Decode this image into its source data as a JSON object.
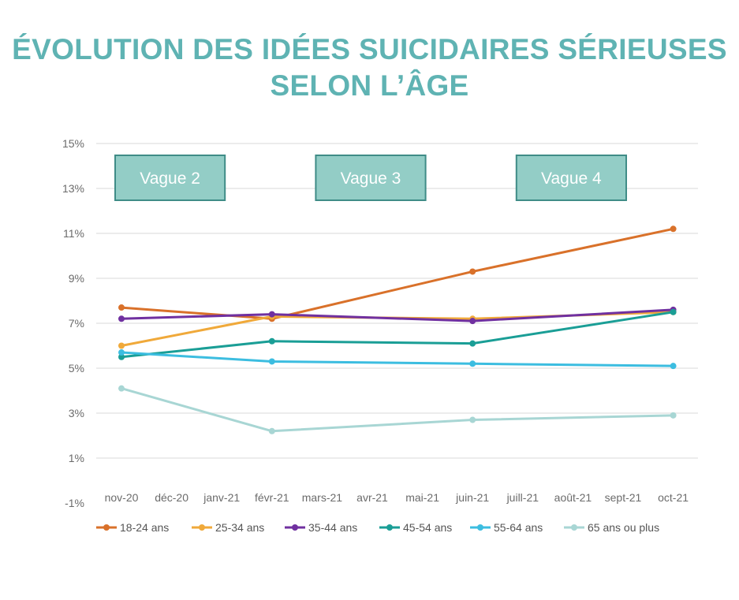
{
  "title": {
    "line1": "ÉVOLUTION DES IDÉES SUICIDAIRES SÉRIEUSES",
    "line2": "SELON L’ÂGE"
  },
  "colors": {
    "title": "#5fb3b3",
    "wave_box_fill": "#93cdc6",
    "wave_box_border": "#3f8c87",
    "grid": "#e6e6e6"
  },
  "chart_data": {
    "type": "line",
    "ylim": [
      -1,
      15
    ],
    "y_ticks": [
      15,
      13,
      11,
      9,
      7,
      5,
      3,
      1,
      -1
    ],
    "y_tick_labels": [
      "15%",
      "13%",
      "11%",
      "9%",
      "7%",
      "5%",
      "3%",
      "1%",
      "-1%"
    ],
    "categories": [
      "nov-20",
      "déc-20",
      "janv-21",
      "févr-21",
      "mars-21",
      "avr-21",
      "mai-21",
      "juin-21",
      "juill-21",
      "août-21",
      "sept-21",
      "oct-21"
    ],
    "grid": true,
    "legend_position": "bottom",
    "waves": [
      {
        "label": "Vague 2",
        "from": 0,
        "to": 2
      },
      {
        "label": "Vague 3",
        "from": 4,
        "to": 6
      },
      {
        "label": "Vague 4",
        "from": 8,
        "to": 10
      }
    ],
    "series": [
      {
        "name": "18-24 ans",
        "color": "#d9712a",
        "points": [
          [
            0,
            7.7
          ],
          [
            3,
            7.2
          ],
          [
            7,
            9.3
          ],
          [
            11,
            11.2
          ]
        ]
      },
      {
        "name": "25-34 ans",
        "color": "#f0a93a",
        "points": [
          [
            0,
            6.0
          ],
          [
            3,
            7.3
          ],
          [
            7,
            7.2
          ],
          [
            11,
            7.5
          ]
        ]
      },
      {
        "name": "35-44 ans",
        "color": "#7030a0",
        "points": [
          [
            0,
            7.2
          ],
          [
            3,
            7.4
          ],
          [
            7,
            7.1
          ],
          [
            11,
            7.6
          ]
        ]
      },
      {
        "name": "45-54 ans",
        "color": "#1a9e96",
        "points": [
          [
            0,
            5.5
          ],
          [
            3,
            6.2
          ],
          [
            7,
            6.1
          ],
          [
            11,
            7.5
          ]
        ]
      },
      {
        "name": "55-64 ans",
        "color": "#3cbde0",
        "points": [
          [
            0,
            5.7
          ],
          [
            3,
            5.3
          ],
          [
            7,
            5.2
          ],
          [
            11,
            5.1
          ]
        ]
      },
      {
        "name": "65 ans ou plus",
        "color": "#a8d6d4",
        "points": [
          [
            0,
            4.1
          ],
          [
            3,
            2.2
          ],
          [
            7,
            2.7
          ],
          [
            11,
            2.9
          ]
        ]
      }
    ]
  }
}
